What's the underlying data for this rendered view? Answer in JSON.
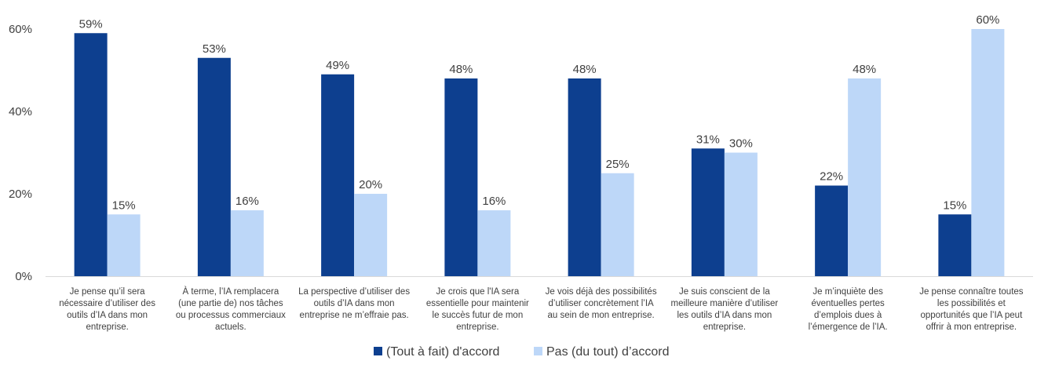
{
  "chart_data": {
    "type": "bar",
    "title": "",
    "xlabel": "",
    "ylabel": "",
    "ylim": [
      0,
      60
    ],
    "yticks": [
      "0%",
      "20%",
      "40%",
      "60%"
    ],
    "ytick_values": [
      0,
      20,
      40,
      60
    ],
    "categories": [
      "Je pense qu’il sera nécessaire d’utiliser des outils d’IA dans mon entreprise.",
      "À terme, l’IA remplacera (une partie de) nos tâches ou processus commerciaux actuels.",
      "La perspective d’utiliser des outils d’IA dans mon entreprise ne m’effraie pas.",
      "Je crois que l'IA sera essentielle pour maintenir le succès futur de mon entreprise.",
      "Je vois déjà des possibilités d’utiliser concrètement l’IA au sein de mon entreprise.",
      "Je suis conscient de la meilleure manière d’utiliser les outils d’IA dans mon entreprise.",
      "Je m’inquiète des éventuelles pertes d’emplois dues à l’émergence de l’IA.",
      "Je pense connaître toutes les possibilités et opportunités que l’IA peut offrir à mon entreprise."
    ],
    "category_lines": [
      [
        "Je pense qu’il sera",
        "nécessaire d’utiliser des",
        "outils d’IA dans mon",
        "entreprise."
      ],
      [
        "À terme, l’IA remplacera",
        "(une partie de) nos tâches",
        "ou processus commerciaux",
        "actuels."
      ],
      [
        "La perspective d’utiliser des",
        "outils d’IA dans mon",
        "entreprise ne m’effraie pas."
      ],
      [
        "Je crois que l'IA sera",
        "essentielle pour maintenir",
        "le succès futur de mon",
        "entreprise."
      ],
      [
        "Je vois déjà des possibilités",
        "d’utiliser concrètement l’IA",
        "au sein de mon entreprise."
      ],
      [
        "Je suis conscient de la",
        "meilleure manière d’utiliser",
        "les outils d’IA dans mon",
        "entreprise."
      ],
      [
        "Je m’inquiète des",
        "éventuelles pertes",
        "d’emplois dues à",
        "l’émergence de l’IA."
      ],
      [
        "Je pense connaître toutes",
        "les possibilités et",
        "opportunités que l’IA peut",
        "offrir à mon entreprise."
      ]
    ],
    "series": [
      {
        "name": "(Tout à fait) d'accord",
        "color": "#0D3F8F",
        "values": [
          59,
          53,
          49,
          48,
          48,
          31,
          22,
          15
        ],
        "labels": [
          "59%",
          "53%",
          "49%",
          "48%",
          "48%",
          "31%",
          "22%",
          "15%"
        ],
        "label_colors": [
          "#404040",
          "#404040",
          "#404040",
          "#404040",
          "#404040",
          "#404040",
          "#0D3F8F",
          "#404040"
        ]
      },
      {
        "name": "Pas (du tout) d’accord",
        "color": "#BDD7F8",
        "values": [
          15,
          16,
          20,
          16,
          25,
          30,
          48,
          60
        ],
        "labels": [
          "15%",
          "16%",
          "20%",
          "16%",
          "25%",
          "30%",
          "48%",
          "60%"
        ],
        "label_colors": [
          "#404040",
          "#404040",
          "#404040",
          "#404040",
          "#404040",
          "#404040",
          "#404040",
          "#404040"
        ]
      }
    ],
    "grid": false,
    "legend_position": "bottom"
  }
}
